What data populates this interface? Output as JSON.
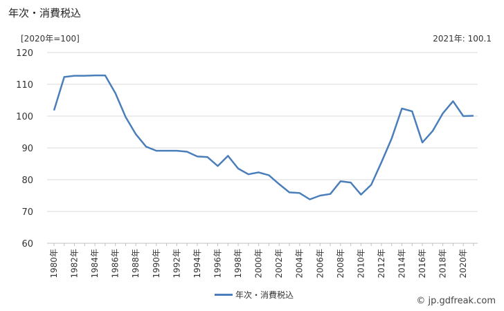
{
  "title": "年次・消費税込",
  "unit_label": "[2020年=100]",
  "latest_label": "2021年: 100.1",
  "credit": "© jp.gdfreak.com",
  "colors": {
    "line": "#4a7ebb",
    "grid": "#d9d9d9"
  },
  "chart_data": {
    "type": "line",
    "title": "年次・消費税込",
    "ylabel": "[2020年=100]",
    "ylim": [
      60,
      120
    ],
    "yticks": [
      60,
      70,
      80,
      90,
      100,
      110,
      120
    ],
    "grid": true,
    "legend_position": "bottom",
    "x": [
      1980,
      1981,
      1982,
      1983,
      1984,
      1985,
      1986,
      1987,
      1988,
      1989,
      1990,
      1991,
      1992,
      1993,
      1994,
      1995,
      1996,
      1997,
      1998,
      1999,
      2000,
      2001,
      2002,
      2003,
      2004,
      2005,
      2006,
      2007,
      2008,
      2009,
      2010,
      2011,
      2012,
      2013,
      2014,
      2015,
      2016,
      2017,
      2018,
      2019,
      2020,
      2021
    ],
    "xtick_labels": [
      "1980年",
      "1982年",
      "1984年",
      "1986年",
      "1988年",
      "1990年",
      "1992年",
      "1994年",
      "1996年",
      "1998年",
      "2000年",
      "2002年",
      "2004年",
      "2006年",
      "2008年",
      "2010年",
      "2012年",
      "2014年",
      "2016年",
      "2018年",
      "2020年"
    ],
    "series": [
      {
        "name": "年次・消費税込",
        "values": [
          101.8,
          112.3,
          112.7,
          112.7,
          112.8,
          112.8,
          107.2,
          99.7,
          94.3,
          90.4,
          89.1,
          89.1,
          89.1,
          88.8,
          87.3,
          87.1,
          84.3,
          87.5,
          83.5,
          81.7,
          82.3,
          81.4,
          78.6,
          76.0,
          75.8,
          73.8,
          75.0,
          75.5,
          79.5,
          79.1,
          75.3,
          78.4,
          85.5,
          93.0,
          102.4,
          101.5,
          91.7,
          95.3,
          100.9,
          104.7,
          100.0,
          100.1
        ]
      }
    ]
  }
}
